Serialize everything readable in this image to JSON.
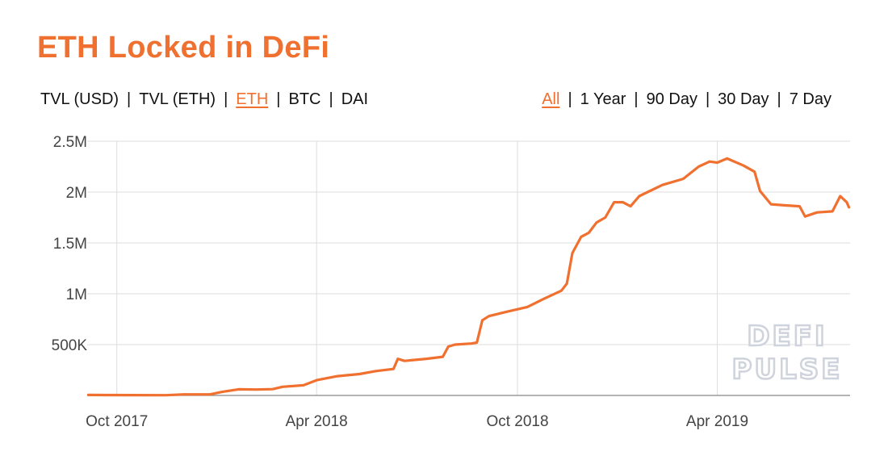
{
  "page": {
    "title": "ETH Locked in DeFi",
    "accent": "#f07030",
    "metric_tabs": [
      {
        "label": "TVL (USD)",
        "active": false
      },
      {
        "label": "TVL (ETH)",
        "active": false
      },
      {
        "label": "ETH",
        "active": true
      },
      {
        "label": "BTC",
        "active": false
      },
      {
        "label": "DAI",
        "active": false
      }
    ],
    "range_tabs": [
      {
        "label": "All",
        "active": true
      },
      {
        "label": "1 Year",
        "active": false
      },
      {
        "label": "90 Day",
        "active": false
      },
      {
        "label": "30 Day",
        "active": false
      },
      {
        "label": "7 Day",
        "active": false
      }
    ],
    "separator": "|",
    "watermark": [
      "DEFI",
      "PULSE"
    ]
  },
  "chart_data": {
    "type": "line",
    "title": "",
    "xlabel": "",
    "ylabel": "",
    "line_color": "#f07030",
    "grid": true,
    "ylim": [
      0,
      2500000
    ],
    "xlim": [
      "2017-09-04",
      "2019-07-31"
    ],
    "y_ticks": [
      {
        "value": 500000,
        "label": "500K"
      },
      {
        "value": 1000000,
        "label": "1M"
      },
      {
        "value": 1500000,
        "label": "1.5M"
      },
      {
        "value": 2000000,
        "label": "2M"
      },
      {
        "value": 2500000,
        "label": "2.5M"
      }
    ],
    "x_ticks": [
      {
        "date": "2017-10-01",
        "label": "Oct 2017"
      },
      {
        "date": "2018-04-01",
        "label": "Apr 2018"
      },
      {
        "date": "2018-10-01",
        "label": "Oct 2018"
      },
      {
        "date": "2019-04-01",
        "label": "Apr 2019"
      }
    ],
    "series": [
      {
        "values": [
          [
            "2017-09-05",
            5000
          ],
          [
            "2017-10-15",
            3000
          ],
          [
            "2017-11-15",
            2000
          ],
          [
            "2017-12-01",
            10000
          ],
          [
            "2017-12-25",
            10000
          ],
          [
            "2018-01-05",
            35000
          ],
          [
            "2018-01-20",
            60000
          ],
          [
            "2018-02-05",
            58000
          ],
          [
            "2018-02-20",
            62000
          ],
          [
            "2018-03-01",
            85000
          ],
          [
            "2018-03-20",
            100000
          ],
          [
            "2018-04-01",
            150000
          ],
          [
            "2018-04-20",
            190000
          ],
          [
            "2018-05-10",
            210000
          ],
          [
            "2018-05-25",
            240000
          ],
          [
            "2018-06-10",
            260000
          ],
          [
            "2018-06-14",
            360000
          ],
          [
            "2018-06-20",
            340000
          ],
          [
            "2018-07-10",
            360000
          ],
          [
            "2018-07-25",
            380000
          ],
          [
            "2018-07-30",
            480000
          ],
          [
            "2018-08-05",
            500000
          ],
          [
            "2018-08-20",
            510000
          ],
          [
            "2018-08-25",
            520000
          ],
          [
            "2018-08-30",
            740000
          ],
          [
            "2018-09-05",
            780000
          ],
          [
            "2018-09-20",
            820000
          ],
          [
            "2018-10-10",
            870000
          ],
          [
            "2018-10-25",
            950000
          ],
          [
            "2018-11-10",
            1030000
          ],
          [
            "2018-11-15",
            1100000
          ],
          [
            "2018-11-20",
            1400000
          ],
          [
            "2018-11-28",
            1560000
          ],
          [
            "2018-12-05",
            1600000
          ],
          [
            "2018-12-12",
            1700000
          ],
          [
            "2018-12-20",
            1750000
          ],
          [
            "2018-12-28",
            1900000
          ],
          [
            "2019-01-05",
            1900000
          ],
          [
            "2019-01-12",
            1860000
          ],
          [
            "2019-01-20",
            1960000
          ],
          [
            "2019-02-10",
            2070000
          ],
          [
            "2019-03-01",
            2130000
          ],
          [
            "2019-03-15",
            2250000
          ],
          [
            "2019-03-25",
            2300000
          ],
          [
            "2019-04-01",
            2290000
          ],
          [
            "2019-04-10",
            2330000
          ],
          [
            "2019-04-25",
            2260000
          ],
          [
            "2019-05-05",
            2200000
          ],
          [
            "2019-05-10",
            2010000
          ],
          [
            "2019-05-20",
            1880000
          ],
          [
            "2019-06-01",
            1870000
          ],
          [
            "2019-06-15",
            1860000
          ],
          [
            "2019-06-20",
            1760000
          ],
          [
            "2019-07-01",
            1800000
          ],
          [
            "2019-07-15",
            1810000
          ],
          [
            "2019-07-22",
            1960000
          ],
          [
            "2019-07-28",
            1900000
          ],
          [
            "2019-07-30",
            1850000
          ]
        ]
      }
    ]
  }
}
